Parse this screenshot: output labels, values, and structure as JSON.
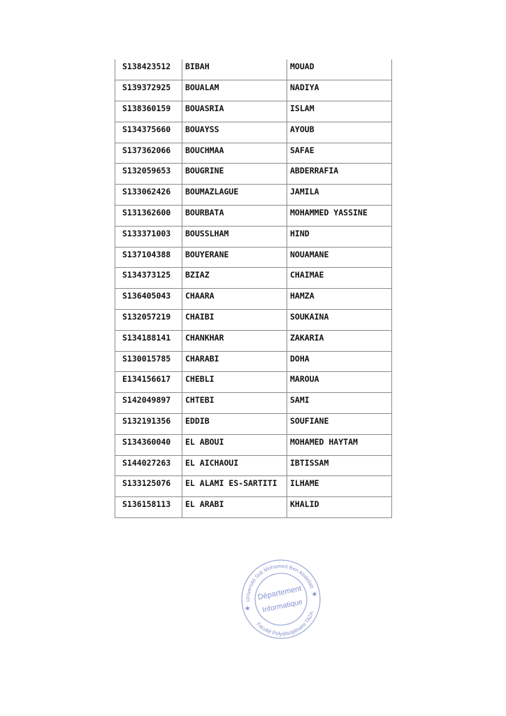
{
  "table": {
    "rows": [
      [
        "S138423512",
        "BIBAH",
        "MOUAD"
      ],
      [
        "S139372925",
        "BOUALAM",
        "NADIYA"
      ],
      [
        "S138360159",
        "BOUASRIA",
        "ISLAM"
      ],
      [
        "S134375660",
        "BOUAYSS",
        "AYOUB"
      ],
      [
        "S137362066",
        "BOUCHMAA",
        "SAFAE"
      ],
      [
        "S132059653",
        "BOUGRINE",
        "ABDERRAFIA"
      ],
      [
        "S133062426",
        "BOUMAZLAGUE",
        "JAMILA"
      ],
      [
        "S131362600",
        "BOURBATA",
        "MOHAMMED YASSINE"
      ],
      [
        "S133371003",
        "BOUSSLHAM",
        "HIND"
      ],
      [
        "S137104388",
        "BOUYERANE",
        "NOUAMANE"
      ],
      [
        "S134373125",
        "BZIAZ",
        "CHAIMAE"
      ],
      [
        "S136405043",
        "CHAARA",
        "HAMZA"
      ],
      [
        "S132057219",
        "CHAIBI",
        "SOUKAINA"
      ],
      [
        "S134188141",
        "CHANKHAR",
        "ZAKARIA"
      ],
      [
        "S130015785",
        "CHARABI",
        "DOHA"
      ],
      [
        "E134156617",
        "CHEBLI",
        "MAROUA"
      ],
      [
        "S142049897",
        "CHTEBI",
        "SAMI"
      ],
      [
        "S132191356",
        "EDDIB",
        "SOUFIANE"
      ],
      [
        "S134360040",
        "EL ABOUI",
        "MOHAMED HAYTAM"
      ],
      [
        "S144027263",
        "EL AICHAOUI",
        "IBTISSAM"
      ],
      [
        "S133125076",
        "EL ALAMI ES-SARTITI",
        "ILHAME"
      ],
      [
        "S136158113",
        "EL ARABI",
        "KHALID"
      ]
    ]
  },
  "stamp": {
    "outer_top": "Université Sidi Mohamed Ben Abdellah",
    "outer_bottom": "Faculté Polydisciplinaire TAZA",
    "line1": "Département",
    "line2": "Informatique",
    "color": "#6f7fc8"
  }
}
